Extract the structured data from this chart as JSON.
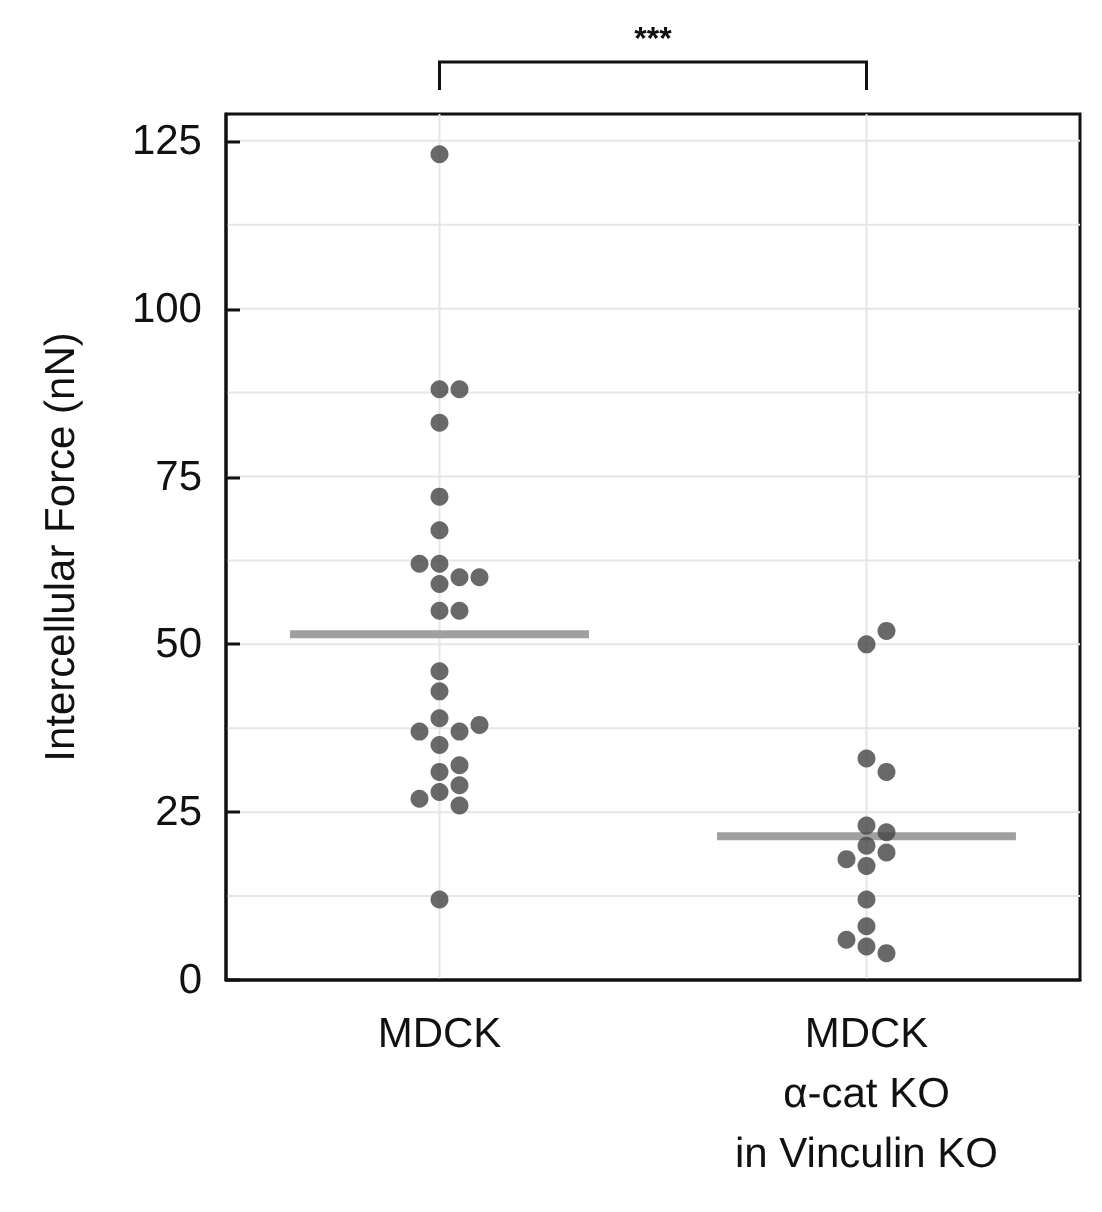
{
  "chart_data": {
    "type": "scatter",
    "ylabel": "Intercellular Force (nN)",
    "annotations": [
      "***"
    ],
    "categories": [
      "MDCK",
      "MDCK\nα-cat KO\nin Vinculin KO"
    ],
    "ylim": [
      0,
      129
    ],
    "yticks": [
      0,
      {
        "value": 12.5,
        "label": null
      },
      25,
      {
        "value": 37.5,
        "label": null
      },
      50,
      {
        "value": 62.5,
        "label": null
      },
      75,
      {
        "value": 87.5,
        "label": null
      },
      100,
      {
        "value": 112.5,
        "label": null
      },
      125
    ],
    "grid": true,
    "marker": "circle",
    "series": [
      {
        "color": "#444444",
        "x": [
          "MDCK",
          "MDCK",
          "MDCK",
          "MDCK",
          "MDCK",
          "MDCK",
          "MDCK",
          "MDCK",
          "MDCK",
          "MDCK",
          "MDCK",
          "MDCK",
          "MDCK",
          "MDCK",
          "MDCK",
          "MDCK",
          "MDCK",
          "MDCK",
          "MDCK",
          "MDCK",
          "MDCK",
          "MDCK",
          "MDCK",
          "MDCK",
          "MDCK",
          "MDCK",
          "MDCK"
        ],
        "values": [
          123,
          88,
          88,
          83,
          72,
          67,
          62,
          60,
          59,
          62,
          60,
          55,
          55,
          46,
          43,
          39,
          37,
          37,
          38,
          35,
          31,
          32,
          28,
          29,
          27,
          26,
          12
        ]
      },
      {
        "color": "#444444",
        "x": [
          "MDCK\nα-cat KO\nin Vinculin KO",
          "MDCK\nα-cat KO\nin Vinculin KO",
          "MDCK\nα-cat KO\nin Vinculin KO",
          "MDCK\nα-cat KO\nin Vinculin KO",
          "MDCK\nα-cat KO\nin Vinculin KO",
          "MDCK\nα-cat KO\nin Vinculin KO",
          "MDCK\nα-cat KO\nin Vinculin KO",
          "MDCK\nα-cat KO\nin Vinculin KO",
          "MDCK\nα-cat KO\nin Vinculin KO",
          "MDCK\nα-cat KO\nin Vinculin KO",
          "MDCK\nα-cat KO\nin Vinculin KO",
          "MDCK\nα-cat KO\nin Vinculin KO",
          "MDCK\nα-cat KO\nin Vinculin KO",
          "MDCK\nα-cat KO\nin Vinculin KO",
          "MDCK\nα-cat KO\nin Vinculin KO"
        ],
        "values": [
          50,
          52,
          33,
          31,
          23,
          22,
          20,
          19,
          17,
          18,
          12,
          8,
          5,
          4,
          6
        ]
      },
      {
        "type": "box",
        "color": "#a0a0a0",
        "boxes": [
          {
            "low": 51.5,
            "q1": 51.5,
            "median": 51.5,
            "q3": 51.5,
            "high": 51.5
          },
          {
            "low": 21.4,
            "q1": 21.4,
            "median": 21.4,
            "q3": 21.4,
            "high": 21.4
          }
        ]
      }
    ]
  }
}
